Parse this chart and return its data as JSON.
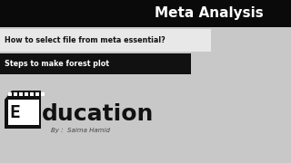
{
  "bg_color": "#c8c8c8",
  "top_bar_color": "#0a0a0a",
  "top_bar_text": "Meta Analysis",
  "top_bar_text_color": "#ffffff",
  "row1_bg": "#e8e8e8",
  "row1_text": "How to select file from meta essential?",
  "row1_text_color": "#111111",
  "row2_bg": "#111111",
  "row2_text": "Steps to make forest plot",
  "row2_text_color": "#ffffff",
  "edu_text": "ducation",
  "by_text": "By :  Saima Hamid",
  "by_text_color": "#444444",
  "film_color": "#111111",
  "film_icon_color": "#ffffff",
  "edu_color": "#111111"
}
